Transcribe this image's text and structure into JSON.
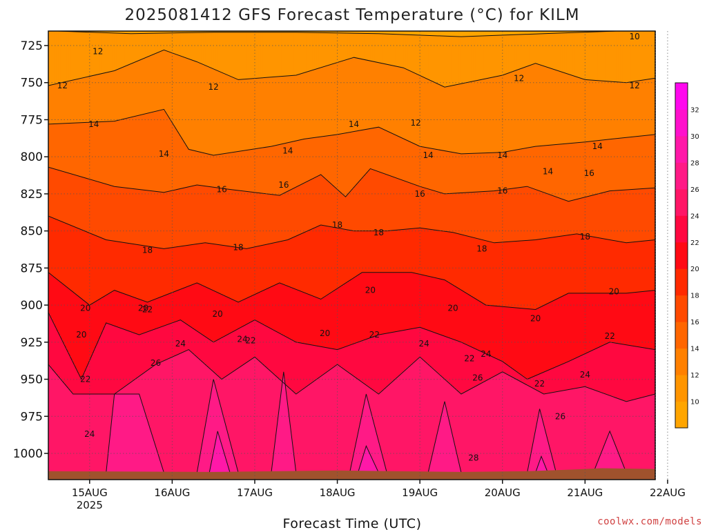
{
  "title": "2025081412 GFS Forecast Temperature (°C) for KILM",
  "credit": "coolwx.com/models",
  "chart_data": {
    "type": "heatmap",
    "title": "2025081412 GFS Forecast Temperature (°C) for KILM",
    "xlabel": "Forecast Time (UTC)",
    "ylabel": "",
    "y_ticks": [
      725,
      750,
      775,
      800,
      825,
      850,
      875,
      900,
      925,
      950,
      975,
      1000
    ],
    "y_range_hpa": [
      1014,
      713
    ],
    "y_scale": "inverted pressure",
    "x_ticks": [
      {
        "label": "15AUG",
        "sub": "2025",
        "day": 0
      },
      {
        "label": "16AUG",
        "sub": "",
        "day": 1
      },
      {
        "label": "17AUG",
        "sub": "",
        "day": 2
      },
      {
        "label": "18AUG",
        "sub": "",
        "day": 3
      },
      {
        "label": "19AUG",
        "sub": "",
        "day": 4
      },
      {
        "label": "20AUG",
        "sub": "",
        "day": 5
      },
      {
        "label": "21AUG",
        "sub": "",
        "day": 6
      },
      {
        "label": "22AUG",
        "sub": "",
        "day": 7
      }
    ],
    "x_range_days": [
      -0.5,
      6.85
    ],
    "grid": true,
    "colorbar": {
      "placement": "right",
      "ticks": [
        10,
        12,
        14,
        16,
        18,
        20,
        22,
        24,
        26,
        28,
        30,
        32
      ],
      "levels": [
        8,
        10,
        12,
        14,
        16,
        18,
        20,
        22,
        24,
        26,
        28,
        30,
        32,
        34
      ],
      "colors": [
        "#ffa500",
        "#ff9500",
        "#ff8000",
        "#ff6600",
        "#ff4a00",
        "#ff2a00",
        "#ff0a14",
        "#ff0840",
        "#ff1666",
        "#ff1a86",
        "#ff18a8",
        "#ff10cc",
        "#ff08ee"
      ]
    },
    "contour_levels": [
      10,
      12,
      14,
      16,
      18,
      20,
      22,
      24,
      26,
      28
    ],
    "contour_lines": [
      {
        "level": 10,
        "points": [
          [
            -0.5,
            715
          ],
          [
            0.5,
            717
          ],
          [
            1.5,
            716
          ],
          [
            2.5,
            716
          ],
          [
            3.5,
            717
          ],
          [
            4.5,
            719
          ],
          [
            5.5,
            717
          ],
          [
            6.5,
            715
          ],
          [
            6.85,
            713
          ]
        ]
      },
      {
        "level": 12,
        "points": [
          [
            -0.5,
            752
          ],
          [
            0.3,
            742
          ],
          [
            0.9,
            728
          ],
          [
            1.3,
            736
          ],
          [
            1.8,
            748
          ],
          [
            2.5,
            745
          ],
          [
            3.2,
            733
          ],
          [
            3.8,
            740
          ],
          [
            4.3,
            753
          ],
          [
            5.0,
            745
          ],
          [
            5.4,
            737
          ],
          [
            6.0,
            748
          ],
          [
            6.5,
            750
          ],
          [
            6.85,
            747
          ]
        ]
      },
      {
        "level": 14,
        "points": [
          [
            -0.5,
            778
          ],
          [
            0.3,
            776
          ],
          [
            0.9,
            768
          ],
          [
            1.2,
            795
          ],
          [
            1.5,
            799
          ],
          [
            2.2,
            793
          ],
          [
            2.6,
            788
          ],
          [
            3.0,
            785
          ],
          [
            3.5,
            780
          ],
          [
            4.0,
            793
          ],
          [
            4.5,
            798
          ],
          [
            5.0,
            797
          ],
          [
            5.4,
            793
          ],
          [
            6.0,
            790
          ],
          [
            6.5,
            787
          ],
          [
            6.85,
            785
          ]
        ]
      },
      {
        "level": 16,
        "points": [
          [
            -0.5,
            807
          ],
          [
            0.3,
            820
          ],
          [
            0.9,
            824
          ],
          [
            1.3,
            819
          ],
          [
            1.7,
            822
          ],
          [
            2.3,
            826
          ],
          [
            2.8,
            812
          ],
          [
            3.1,
            827
          ],
          [
            3.4,
            808
          ],
          [
            4.0,
            820
          ],
          [
            4.3,
            825
          ],
          [
            4.9,
            823
          ],
          [
            5.3,
            820
          ],
          [
            5.8,
            830
          ],
          [
            6.3,
            823
          ],
          [
            6.85,
            821
          ]
        ]
      },
      {
        "level": 18,
        "points": [
          [
            -0.5,
            840
          ],
          [
            0.2,
            856
          ],
          [
            0.9,
            862
          ],
          [
            1.4,
            858
          ],
          [
            1.9,
            862
          ],
          [
            2.4,
            856
          ],
          [
            2.8,
            846
          ],
          [
            3.2,
            850
          ],
          [
            3.6,
            850
          ],
          [
            4.0,
            848
          ],
          [
            4.4,
            851
          ],
          [
            4.9,
            858
          ],
          [
            5.4,
            856
          ],
          [
            5.9,
            852
          ],
          [
            6.5,
            858
          ],
          [
            6.85,
            856
          ]
        ]
      },
      {
        "level": 20,
        "points": [
          [
            -0.5,
            878
          ],
          [
            0.0,
            900
          ],
          [
            0.3,
            890
          ],
          [
            0.7,
            898
          ],
          [
            1.3,
            885
          ],
          [
            1.8,
            898
          ],
          [
            2.3,
            885
          ],
          [
            2.8,
            896
          ],
          [
            3.3,
            878
          ],
          [
            3.9,
            878
          ],
          [
            4.3,
            883
          ],
          [
            4.8,
            900
          ],
          [
            5.4,
            903
          ],
          [
            5.8,
            892
          ],
          [
            6.5,
            892
          ],
          [
            6.85,
            890
          ]
        ]
      },
      {
        "level": 22,
        "points": [
          [
            -0.5,
            905
          ],
          [
            -0.1,
            950
          ],
          [
            0.2,
            912
          ],
          [
            0.6,
            920
          ],
          [
            1.1,
            910
          ],
          [
            1.5,
            925
          ],
          [
            2.0,
            910
          ],
          [
            2.5,
            925
          ],
          [
            3.0,
            930
          ],
          [
            3.5,
            920
          ],
          [
            4.0,
            915
          ],
          [
            4.5,
            925
          ],
          [
            5.0,
            938
          ],
          [
            5.3,
            950
          ],
          [
            5.8,
            938
          ],
          [
            6.3,
            925
          ],
          [
            6.85,
            930
          ]
        ]
      },
      {
        "level": 24,
        "points": [
          [
            -0.5,
            940
          ],
          [
            -0.2,
            960
          ],
          [
            0.3,
            960
          ],
          [
            0.8,
            940
          ],
          [
            1.2,
            930
          ],
          [
            1.6,
            950
          ],
          [
            2.0,
            935
          ],
          [
            2.5,
            960
          ],
          [
            3.0,
            940
          ],
          [
            3.5,
            960
          ],
          [
            4.0,
            935
          ],
          [
            4.5,
            960
          ],
          [
            5.0,
            945
          ],
          [
            5.5,
            960
          ],
          [
            6.0,
            955
          ],
          [
            6.5,
            965
          ],
          [
            6.85,
            960
          ]
        ]
      },
      {
        "level": 26,
        "points": [
          [
            0.2,
            1013
          ],
          [
            0.3,
            960
          ],
          [
            0.6,
            960
          ],
          [
            0.9,
            1013
          ]
        ]
      },
      {
        "level": 26,
        "points": [
          [
            1.3,
            1013
          ],
          [
            1.5,
            950
          ],
          [
            1.8,
            1013
          ]
        ]
      },
      {
        "level": 26,
        "points": [
          [
            2.2,
            1013
          ],
          [
            2.35,
            945
          ],
          [
            2.5,
            1013
          ]
        ]
      },
      {
        "level": 26,
        "points": [
          [
            3.15,
            1013
          ],
          [
            3.35,
            960
          ],
          [
            3.6,
            1013
          ]
        ]
      },
      {
        "level": 26,
        "points": [
          [
            4.1,
            1013
          ],
          [
            4.3,
            965
          ],
          [
            4.5,
            1013
          ]
        ]
      },
      {
        "level": 26,
        "points": [
          [
            5.3,
            1013
          ],
          [
            5.45,
            970
          ],
          [
            5.65,
            1013
          ]
        ]
      },
      {
        "level": 26,
        "points": [
          [
            6.1,
            1013
          ],
          [
            6.3,
            985
          ],
          [
            6.5,
            1013
          ]
        ]
      },
      {
        "level": 28,
        "points": [
          [
            1.45,
            1013
          ],
          [
            1.55,
            985
          ],
          [
            1.7,
            1013
          ]
        ]
      },
      {
        "level": 28,
        "points": [
          [
            3.25,
            1013
          ],
          [
            3.35,
            995
          ],
          [
            3.5,
            1013
          ]
        ]
      },
      {
        "level": 28,
        "points": [
          [
            5.4,
            1013
          ],
          [
            5.47,
            1002
          ],
          [
            5.55,
            1013
          ]
        ]
      }
    ],
    "contour_labels": [
      {
        "text": "10",
        "x": 6.6,
        "p": 719
      },
      {
        "text": "12",
        "x": 0.1,
        "p": 729
      },
      {
        "text": "12",
        "x": -0.33,
        "p": 752
      },
      {
        "text": "12",
        "x": 1.5,
        "p": 753
      },
      {
        "text": "12",
        "x": 3.95,
        "p": 777
      },
      {
        "text": "12",
        "x": 5.2,
        "p": 747
      },
      {
        "text": "12",
        "x": 6.6,
        "p": 752
      },
      {
        "text": "14",
        "x": 0.05,
        "p": 778
      },
      {
        "text": "14",
        "x": 0.9,
        "p": 798
      },
      {
        "text": "14",
        "x": 2.4,
        "p": 796
      },
      {
        "text": "14",
        "x": 3.2,
        "p": 778
      },
      {
        "text": "14",
        "x": 4.1,
        "p": 799
      },
      {
        "text": "14",
        "x": 5.0,
        "p": 799
      },
      {
        "text": "14",
        "x": 5.55,
        "p": 810
      },
      {
        "text": "14",
        "x": 6.15,
        "p": 793
      },
      {
        "text": "16",
        "x": 1.6,
        "p": 822
      },
      {
        "text": "16",
        "x": 2.35,
        "p": 819
      },
      {
        "text": "16",
        "x": 4.0,
        "p": 825
      },
      {
        "text": "16",
        "x": 5.0,
        "p": 823
      },
      {
        "text": "16",
        "x": 6.05,
        "p": 811
      },
      {
        "text": "18",
        "x": 0.7,
        "p": 863
      },
      {
        "text": "18",
        "x": 1.8,
        "p": 861
      },
      {
        "text": "18",
        "x": 3.0,
        "p": 846
      },
      {
        "text": "18",
        "x": 3.5,
        "p": 851
      },
      {
        "text": "18",
        "x": 4.75,
        "p": 862
      },
      {
        "text": "18",
        "x": 6.0,
        "p": 854
      },
      {
        "text": "20",
        "x": -0.05,
        "p": 902
      },
      {
        "text": "20",
        "x": 0.65,
        "p": 902
      },
      {
        "text": "20",
        "x": 1.55,
        "p": 906
      },
      {
        "text": "20",
        "x": 2.85,
        "p": 919
      },
      {
        "text": "20",
        "x": 3.4,
        "p": 890
      },
      {
        "text": "20",
        "x": 4.4,
        "p": 902
      },
      {
        "text": "20",
        "x": 5.4,
        "p": 909
      },
      {
        "text": "20",
        "x": 6.35,
        "p": 891
      },
      {
        "text": "20",
        "x": -0.1,
        "p": 920
      },
      {
        "text": "22",
        "x": 0.7,
        "p": 903
      },
      {
        "text": "22",
        "x": 1.95,
        "p": 924
      },
      {
        "text": "22",
        "x": 3.45,
        "p": 920
      },
      {
        "text": "22",
        "x": 4.6,
        "p": 936
      },
      {
        "text": "22",
        "x": 5.45,
        "p": 953
      },
      {
        "text": "22",
        "x": 6.3,
        "p": 921
      },
      {
        "text": "22",
        "x": -0.05,
        "p": 950
      },
      {
        "text": "24",
        "x": 1.1,
        "p": 926
      },
      {
        "text": "24",
        "x": 1.85,
        "p": 923
      },
      {
        "text": "24",
        "x": 4.05,
        "p": 926
      },
      {
        "text": "24",
        "x": 4.8,
        "p": 933
      },
      {
        "text": "24",
        "x": 6.0,
        "p": 947
      },
      {
        "text": "24",
        "x": 0.0,
        "p": 987
      },
      {
        "text": "26",
        "x": 0.8,
        "p": 939
      },
      {
        "text": "26",
        "x": 4.7,
        "p": 949
      },
      {
        "text": "26",
        "x": 5.7,
        "p": 975
      },
      {
        "text": "28",
        "x": 4.65,
        "p": 1003
      }
    ]
  }
}
